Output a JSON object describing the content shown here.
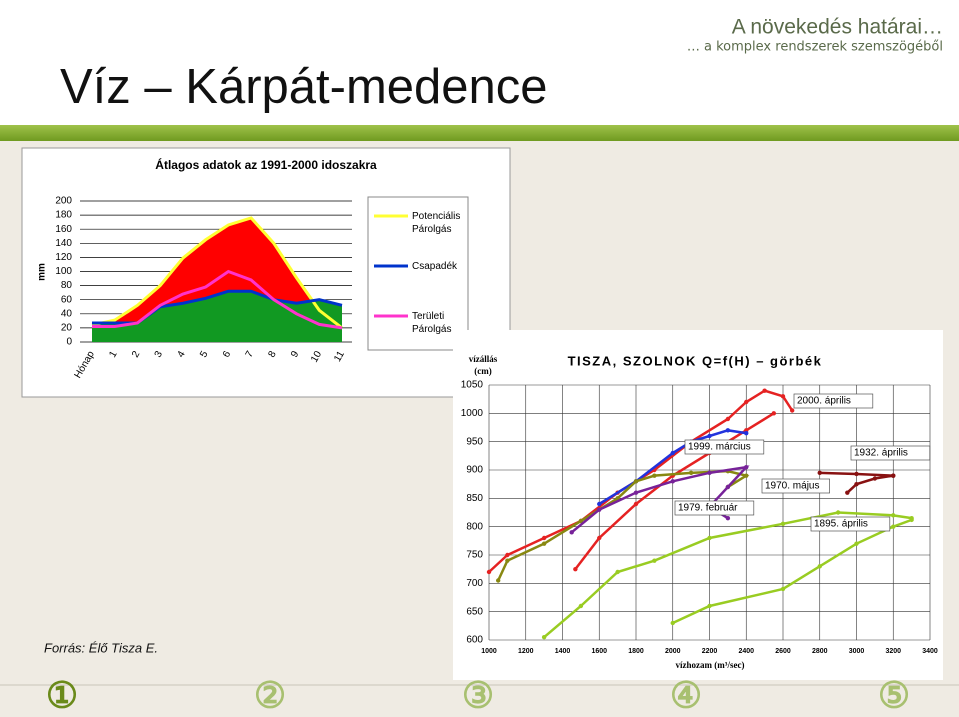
{
  "header": {
    "topic": "A növekedés határai…",
    "subtopic": "… a komplex rendszerek szemszögéből",
    "title": "Víz – Kárpát-medence"
  },
  "source": "Forrás: Élő Tisza E.",
  "nav": [
    "①",
    "②",
    "③",
    "④",
    "⑤"
  ],
  "chart_data": [
    {
      "type": "area",
      "title": "Átlagos adatok az 1991-2000 idoszakra",
      "ylabel": "mm",
      "categories": [
        "Hónap",
        "1",
        "2",
        "3",
        "4",
        "5",
        "6",
        "7",
        "8",
        "9",
        "10",
        "11"
      ],
      "ylim": [
        0,
        200
      ],
      "yticks": [
        0,
        20,
        40,
        60,
        80,
        100,
        120,
        140,
        160,
        180,
        200
      ],
      "grid": true,
      "legend": "right",
      "series": [
        {
          "name": "Potenciális Párolgás",
          "color": "#ffff33",
          "fill": "#ff0000",
          "values": [
            24,
            31,
            52,
            80,
            119,
            145,
            166,
            176,
            140,
            91,
            45,
            20
          ]
        },
        {
          "name": "Csapadék",
          "color": "#0033cc",
          "fill": "#119922",
          "values": [
            27,
            27,
            27,
            50,
            55,
            62,
            72,
            72,
            60,
            55,
            60,
            52
          ]
        },
        {
          "name": "Területi Párolgás",
          "color": "#ff33cc",
          "values": [
            22,
            22,
            27,
            52,
            68,
            78,
            100,
            88,
            60,
            40,
            25,
            20
          ]
        }
      ]
    },
    {
      "type": "line",
      "title": "TISZA, SZOLNOK Q=f(H) – görbék",
      "ylabel": [
        "vízállás",
        "(cm)"
      ],
      "xlabel": "vízhozam (m³/sec)",
      "xlim": [
        1000,
        3400
      ],
      "xticks": [
        1000,
        1200,
        1400,
        1600,
        1800,
        2000,
        2200,
        2400,
        2600,
        2800,
        3000,
        3200,
        3400
      ],
      "ylim": [
        600,
        1050
      ],
      "yticks": [
        600,
        650,
        700,
        750,
        800,
        850,
        900,
        950,
        1000,
        1050
      ],
      "grid": true,
      "series": [
        {
          "name": "2000. április",
          "color": "#e52222",
          "x": [
            1000,
            1100,
            1300,
            1500,
            1700,
            1900,
            2100,
            2300,
            2400,
            2500,
            2600,
            2650,
            null,
            1470,
            1600,
            1800,
            2000,
            2200,
            2400,
            2550
          ],
          "values": [
            720,
            750,
            780,
            810,
            860,
            900,
            950,
            990,
            1020,
            1040,
            1030,
            1005,
            null,
            725,
            780,
            840,
            890,
            930,
            970,
            1000
          ]
        },
        {
          "name": "1999. március",
          "color": "#2233dd",
          "x": [
            1600,
            1800,
            2000,
            2100,
            2200,
            2300,
            2400
          ],
          "values": [
            840,
            880,
            930,
            950,
            960,
            970,
            965
          ]
        },
        {
          "name": "1932. április",
          "color": "#881111",
          "x": [
            2950,
            3000,
            3100,
            3200,
            null,
            2800,
            3000,
            3200
          ],
          "values": [
            860,
            875,
            885,
            890,
            null,
            895,
            893,
            890
          ]
        },
        {
          "name": "1970. május",
          "color": "#888811",
          "x": [
            1050,
            1100,
            1300,
            1500,
            1700,
            1800,
            1900,
            2100,
            2300,
            2400,
            2300
          ],
          "values": [
            705,
            740,
            770,
            810,
            850,
            880,
            890,
            895,
            898,
            890,
            870
          ]
        },
        {
          "name": "1979. február",
          "color": "#772299",
          "x": [
            1450,
            1600,
            1800,
            2000,
            2200,
            2400,
            2300,
            2200,
            2300
          ],
          "values": [
            790,
            830,
            860,
            880,
            895,
            905,
            870,
            835,
            815
          ]
        },
        {
          "name": "1895. április",
          "color": "#99cc22",
          "x": [
            1300,
            1500,
            1700,
            1900,
            2200,
            2600,
            2900,
            3200,
            3300,
            null,
            2000,
            2200,
            2600,
            2800,
            3000,
            3200,
            3300
          ],
          "values": [
            605,
            660,
            720,
            740,
            780,
            805,
            825,
            820,
            815,
            null,
            630,
            660,
            690,
            730,
            770,
            800,
            812
          ]
        }
      ]
    }
  ]
}
